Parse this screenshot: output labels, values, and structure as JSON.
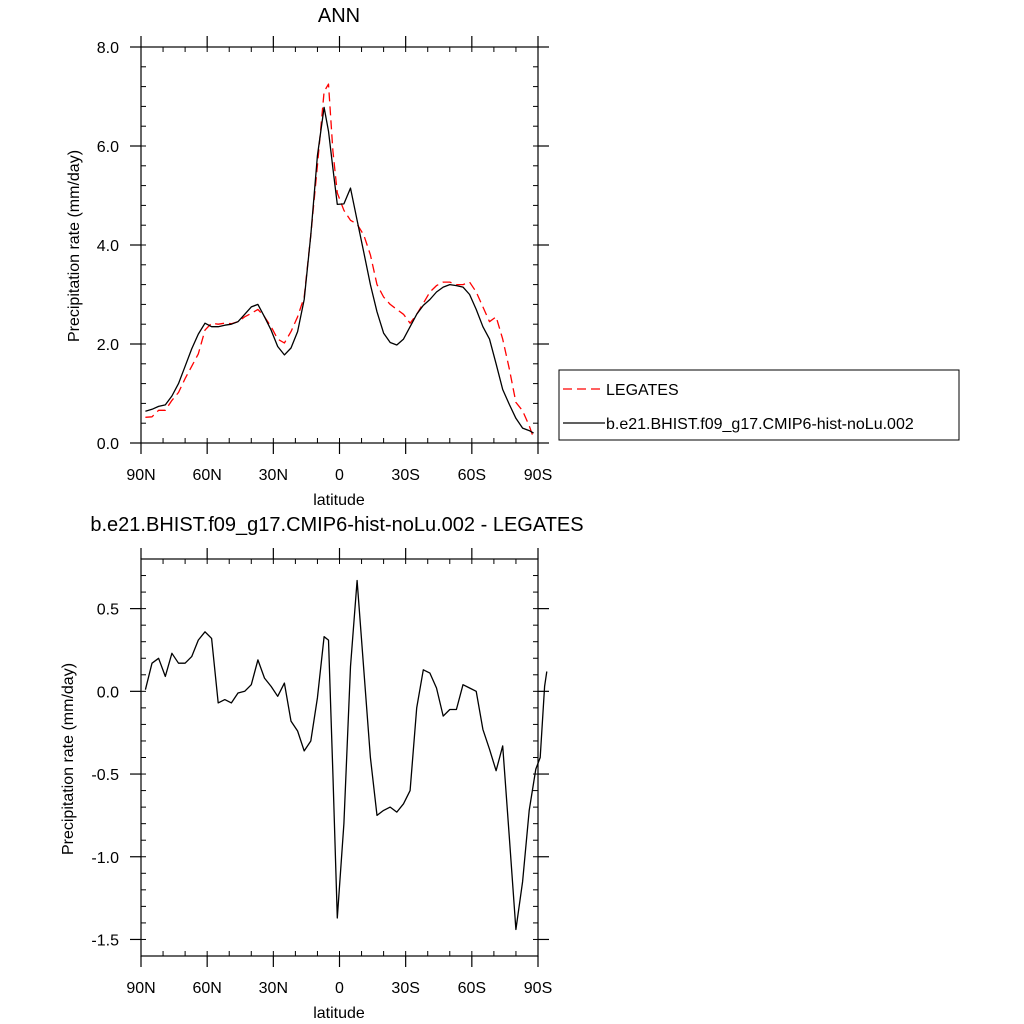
{
  "chart_data": [
    {
      "type": "line",
      "title": "ANN",
      "xlabel": "latitude",
      "ylabel": "Precipitation rate (mm/day)",
      "xlim": [
        90,
        -90
      ],
      "ylim": [
        0,
        8
      ],
      "x_ticks": [
        {
          "value": 90,
          "label": "90N"
        },
        {
          "value": 60,
          "label": "60N"
        },
        {
          "value": 30,
          "label": "30N"
        },
        {
          "value": 0,
          "label": "0"
        },
        {
          "value": -30,
          "label": "30S"
        },
        {
          "value": -60,
          "label": "60S"
        },
        {
          "value": -90,
          "label": "90S"
        }
      ],
      "y_ticks": [
        {
          "value": 0,
          "label": "0.0"
        },
        {
          "value": 2,
          "label": "2.0"
        },
        {
          "value": 4,
          "label": "4.0"
        },
        {
          "value": 6,
          "label": "6.0"
        },
        {
          "value": 8,
          "label": "8.0"
        }
      ],
      "legend_placement": "right",
      "series": [
        {
          "name": "LEGATES",
          "color": "#ff0000",
          "style": "dashed",
          "points": [
            [
              88,
              0.52
            ],
            [
              85,
              0.53
            ],
            [
              82,
              0.66
            ],
            [
              79,
              0.66
            ],
            [
              76,
              0.86
            ],
            [
              73,
              1.02
            ],
            [
              70,
              1.3
            ],
            [
              67,
              1.55
            ],
            [
              64,
              1.8
            ],
            [
              61,
              2.28
            ],
            [
              58,
              2.42
            ],
            [
              55,
              2.4
            ],
            [
              52,
              2.42
            ],
            [
              49,
              2.41
            ],
            [
              46,
              2.45
            ],
            [
              43,
              2.55
            ],
            [
              40,
              2.62
            ],
            [
              37,
              2.7
            ],
            [
              34,
              2.55
            ],
            [
              31,
              2.35
            ],
            [
              28,
              2.1
            ],
            [
              25,
              2.02
            ],
            [
              22,
              2.25
            ],
            [
              19,
              2.55
            ],
            [
              16,
              2.95
            ],
            [
              13,
              4.2
            ],
            [
              10,
              5.6
            ],
            [
              7,
              7.1
            ],
            [
              5,
              7.25
            ],
            [
              3,
              5.9
            ],
            [
              1,
              5.05
            ],
            [
              -2,
              4.7
            ],
            [
              -5,
              4.5
            ],
            [
              -8,
              4.42
            ],
            [
              -11,
              4.2
            ],
            [
              -14,
              3.8
            ],
            [
              -17,
              3.2
            ],
            [
              -20,
              2.95
            ],
            [
              -23,
              2.8
            ],
            [
              -26,
              2.7
            ],
            [
              -29,
              2.6
            ],
            [
              -32,
              2.42
            ],
            [
              -35,
              2.6
            ],
            [
              -38,
              2.82
            ],
            [
              -41,
              3.05
            ],
            [
              -44,
              3.18
            ],
            [
              -47,
              3.25
            ],
            [
              -50,
              3.25
            ],
            [
              -53,
              3.2
            ],
            [
              -56,
              3.2
            ],
            [
              -59,
              3.25
            ],
            [
              -62,
              3.05
            ],
            [
              -65,
              2.75
            ],
            [
              -68,
              2.45
            ],
            [
              -71,
              2.55
            ],
            [
              -74,
              2.1
            ],
            [
              -77,
              1.5
            ],
            [
              -80,
              0.82
            ],
            [
              -83,
              0.65
            ],
            [
              -86,
              0.35
            ],
            [
              -88,
              0.1
            ]
          ]
        },
        {
          "name": "b.e21.BHIST.f09_g17.CMIP6-hist-noLu.002",
          "color": "#000000",
          "style": "solid",
          "points": [
            [
              88,
              0.64
            ],
            [
              85,
              0.68
            ],
            [
              82,
              0.74
            ],
            [
              79,
              0.77
            ],
            [
              76,
              0.95
            ],
            [
              73,
              1.2
            ],
            [
              70,
              1.55
            ],
            [
              67,
              1.9
            ],
            [
              64,
              2.2
            ],
            [
              61,
              2.42
            ],
            [
              58,
              2.35
            ],
            [
              55,
              2.35
            ],
            [
              52,
              2.38
            ],
            [
              49,
              2.4
            ],
            [
              46,
              2.45
            ],
            [
              43,
              2.6
            ],
            [
              40,
              2.75
            ],
            [
              37,
              2.8
            ],
            [
              34,
              2.55
            ],
            [
              31,
              2.28
            ],
            [
              28,
              1.95
            ],
            [
              25,
              1.78
            ],
            [
              22,
              1.92
            ],
            [
              19,
              2.25
            ],
            [
              16,
              2.9
            ],
            [
              13,
              4.2
            ],
            [
              10,
              5.8
            ],
            [
              7,
              6.78
            ],
            [
              5,
              6.3
            ],
            [
              3,
              5.55
            ],
            [
              1,
              4.82
            ],
            [
              -2,
              4.83
            ],
            [
              -5,
              5.15
            ],
            [
              -8,
              4.5
            ],
            [
              -11,
              3.85
            ],
            [
              -14,
              3.2
            ],
            [
              -17,
              2.65
            ],
            [
              -20,
              2.22
            ],
            [
              -23,
              2.03
            ],
            [
              -26,
              1.98
            ],
            [
              -29,
              2.1
            ],
            [
              -32,
              2.35
            ],
            [
              -35,
              2.6
            ],
            [
              -38,
              2.78
            ],
            [
              -41,
              2.9
            ],
            [
              -44,
              3.05
            ],
            [
              -47,
              3.15
            ],
            [
              -50,
              3.2
            ],
            [
              -53,
              3.18
            ],
            [
              -56,
              3.15
            ],
            [
              -59,
              3.0
            ],
            [
              -62,
              2.7
            ],
            [
              -65,
              2.35
            ],
            [
              -68,
              2.1
            ],
            [
              -71,
              1.6
            ],
            [
              -74,
              1.08
            ],
            [
              -77,
              0.78
            ],
            [
              -80,
              0.5
            ],
            [
              -83,
              0.3
            ],
            [
              -86,
              0.25
            ],
            [
              -88,
              0.2
            ]
          ]
        }
      ]
    },
    {
      "type": "line",
      "title": "b.e21.BHIST.f09_g17.CMIP6-hist-noLu.002 - LEGATES",
      "xlabel": "latitude",
      "ylabel": "Precipitation rate (mm/day)",
      "xlim": [
        90,
        -90
      ],
      "ylim": [
        -1.6,
        0.8
      ],
      "x_ticks": [
        {
          "value": 90,
          "label": "90N"
        },
        {
          "value": 60,
          "label": "60N"
        },
        {
          "value": 30,
          "label": "30N"
        },
        {
          "value": 0,
          "label": "0"
        },
        {
          "value": -30,
          "label": "30S"
        },
        {
          "value": -60,
          "label": "60S"
        },
        {
          "value": -90,
          "label": "90S"
        }
      ],
      "y_ticks": [
        {
          "value": -1.5,
          "label": "-1.5"
        },
        {
          "value": -1.0,
          "label": "-1.0"
        },
        {
          "value": -0.5,
          "label": "-0.5"
        },
        {
          "value": 0.0,
          "label": "0.0"
        },
        {
          "value": 0.5,
          "label": "0.5"
        }
      ],
      "series": [
        {
          "color": "#000000",
          "style": "solid",
          "points": [
            [
              88,
              0.01
            ],
            [
              85,
              0.17
            ],
            [
              82,
              0.2
            ],
            [
              79,
              0.09
            ],
            [
              76,
              0.23
            ],
            [
              73,
              0.17
            ],
            [
              70,
              0.17
            ],
            [
              67,
              0.21
            ],
            [
              64,
              0.31
            ],
            [
              61,
              0.36
            ],
            [
              58,
              0.32
            ],
            [
              55,
              -0.07
            ],
            [
              52,
              -0.05
            ],
            [
              49,
              -0.07
            ],
            [
              46,
              -0.01
            ],
            [
              43,
              0.0
            ],
            [
              40,
              0.04
            ],
            [
              37,
              0.19
            ],
            [
              34,
              0.08
            ],
            [
              31,
              0.03
            ],
            [
              28,
              -0.03
            ],
            [
              25,
              0.05
            ],
            [
              22,
              -0.18
            ],
            [
              19,
              -0.24
            ],
            [
              16,
              -0.36
            ],
            [
              13,
              -0.3
            ],
            [
              10,
              -0.04
            ],
            [
              7,
              0.33
            ],
            [
              5,
              0.31
            ],
            [
              3,
              -0.5
            ],
            [
              1,
              -1.37
            ],
            [
              -2,
              -0.8
            ],
            [
              -5,
              0.15
            ],
            [
              -8,
              0.67
            ],
            [
              -11,
              0.13
            ],
            [
              -14,
              -0.4
            ],
            [
              -17,
              -0.75
            ],
            [
              -20,
              -0.72
            ],
            [
              -23,
              -0.7
            ],
            [
              -26,
              -0.73
            ],
            [
              -29,
              -0.68
            ],
            [
              -32,
              -0.6
            ],
            [
              -35,
              -0.1
            ],
            [
              -38,
              0.13
            ],
            [
              -41,
              0.11
            ],
            [
              -44,
              0.02
            ],
            [
              -47,
              -0.15
            ],
            [
              -50,
              -0.11
            ],
            [
              -53,
              -0.11
            ],
            [
              -56,
              0.04
            ],
            [
              -59,
              0.02
            ],
            [
              -62,
              0.0
            ],
            [
              -65,
              -0.23
            ],
            [
              -68,
              -0.35
            ],
            [
              -71,
              -0.48
            ],
            [
              -74,
              -0.33
            ],
            [
              -77,
              -0.88
            ],
            [
              -80,
              -1.44
            ],
            [
              -83,
              -1.15
            ],
            [
              -86,
              -0.72
            ],
            [
              -89,
              -0.47
            ],
            [
              -91,
              -0.4
            ],
            [
              -93,
              0.03
            ],
            [
              -94,
              0.12
            ]
          ]
        }
      ]
    }
  ]
}
